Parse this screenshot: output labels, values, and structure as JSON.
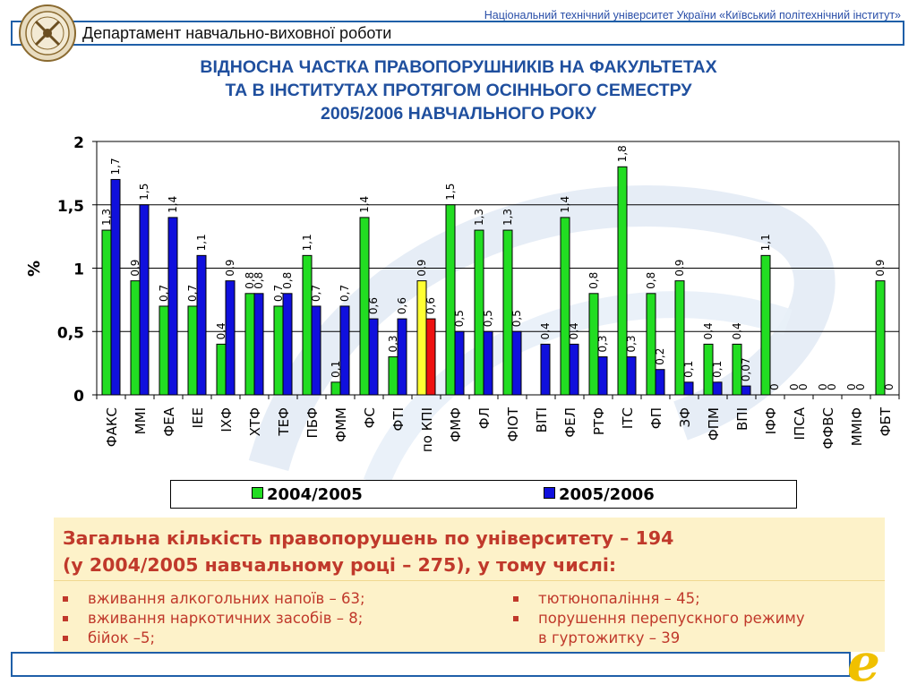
{
  "header": {
    "university": "Національний технічний університет України «Київський політехнічний інститут»",
    "department": "Департамент навчально-виховної роботи"
  },
  "title_lines": [
    "ВІДНОСНА ЧАСТКА ПРАВОПОРУШНИКІВ НА ФАКУЛЬТЕТАХ",
    "ТА В ІНСТИТУТАХ ПРОТЯГОМ ОСІННЬОГО СЕМЕСТРУ",
    "2005/2006 НАВЧАЛЬНОГО РОКУ"
  ],
  "colors": {
    "series_2004": "#22dd22",
    "series_2005": "#1010dd",
    "kpi_2004": "#ffff33",
    "kpi_2005": "#ee1111",
    "accent_blue": "#1f5fa8",
    "summary_red": "#c0392b"
  },
  "chart_data": {
    "type": "bar",
    "ylabel": "%",
    "ylim": [
      0,
      2
    ],
    "yticks": [
      "0",
      "0,5",
      "1",
      "1,5",
      "2"
    ],
    "grid": true,
    "legend_position": "bottom",
    "categories": [
      "ФАКС",
      "ММІ",
      "ФЕА",
      "ІЕЕ",
      "ІХФ",
      "ХТФ",
      "ТЕФ",
      "ПБФ",
      "ФММ",
      "ФС",
      "ФТІ",
      "по КПІ",
      "ФМФ",
      "ФЛ",
      "ФІОТ",
      "ВІТІ",
      "ФЕЛ",
      "РТФ",
      "ІТС",
      "ФП",
      "ЗФ",
      "ФПМ",
      "ВПІ",
      "ІФФ",
      "ІПСА",
      "ФФВС",
      "ММІФ",
      "ФБТ"
    ],
    "series": [
      {
        "name": "2004/2005",
        "values": [
          1.3,
          0.9,
          0.7,
          0.7,
          0.4,
          0.8,
          0.7,
          1.1,
          0.1,
          1.4,
          0.3,
          0.9,
          1.5,
          1.3,
          1.3,
          null,
          1.4,
          0.8,
          1.8,
          0.8,
          0.9,
          0.4,
          0.4,
          1.1,
          0,
          0,
          0,
          0.9
        ],
        "labels": [
          "1,3",
          "0,9",
          "0,7",
          "0,7",
          "0,4",
          "0,8",
          "0,7",
          "1,1",
          "0,1",
          "1,4",
          "0,3",
          "0,9",
          "1,5",
          "1,3",
          "1,3",
          "",
          "1,4",
          "0,8",
          "1,8",
          "0,8",
          "0,9",
          "0,4",
          "0,4",
          "1,1",
          "0",
          "0",
          "0",
          "0,9"
        ]
      },
      {
        "name": "2005/2006",
        "values": [
          1.7,
          1.5,
          1.4,
          1.1,
          0.9,
          0.8,
          0.8,
          0.7,
          0.7,
          0.6,
          0.6,
          0.6,
          0.5,
          0.5,
          0.5,
          0.4,
          0.4,
          0.3,
          0.3,
          0.2,
          0.1,
          0.1,
          0.07,
          0,
          0,
          0,
          0,
          0
        ],
        "labels": [
          "1,7",
          "1,5",
          "1,4",
          "1,1",
          "0,9",
          "0,8",
          "0,8",
          "0,7",
          "0,7",
          "0,6",
          "0,6",
          "0,6",
          "0,5",
          "0,5",
          "0,5",
          "0,4",
          "0,4",
          "0,3",
          "0,3",
          "0,2",
          "0,1",
          "0,1",
          "0,07",
          "0",
          "0",
          "0",
          "0",
          "0"
        ]
      }
    ]
  },
  "summary": {
    "line1": "Загальна кількість правопорушень по університету – 194",
    "line2": "(у 2004/2005 навчальному році – 275), у тому числі:",
    "left_items": [
      "вживання алкогольних напоїв – 63;",
      "вживання наркотичних засобів – 8;",
      "бійок –5;"
    ],
    "right_items": [
      "тютюнопаління – 45;",
      "порушення перепускного режиму",
      "в гуртожитку – 39"
    ]
  }
}
